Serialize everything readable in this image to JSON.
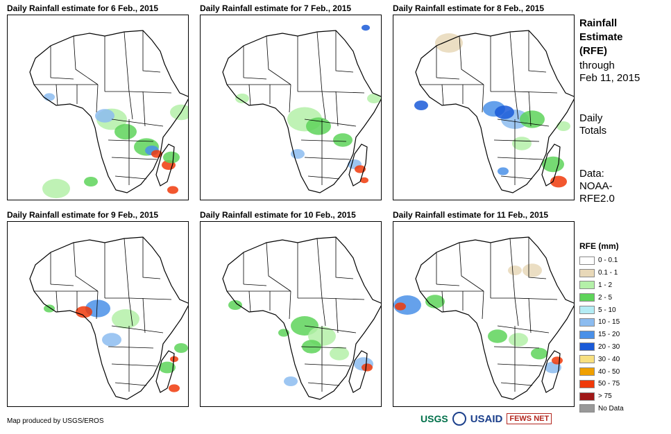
{
  "panels": [
    {
      "title": "Daily Rainfall estimate for 6 Feb., 2015"
    },
    {
      "title": "Daily Rainfall estimate for 7 Feb., 2015"
    },
    {
      "title": "Daily Rainfall estimate for 8 Feb., 2015"
    },
    {
      "title": "Daily Rainfall estimate for 9 Feb., 2015"
    },
    {
      "title": "Daily Rainfall estimate for 10 Feb., 2015"
    },
    {
      "title": "Daily Rainfall estimate for 11 Feb., 2015"
    }
  ],
  "sidebar": {
    "title_lines": [
      "Rainfall",
      "Estimate",
      "(RFE)"
    ],
    "through_lines": [
      "through",
      "Feb 11, 2015"
    ],
    "totals_lines": [
      "Daily",
      "Totals"
    ],
    "data_lines": [
      "Data:",
      "NOAA-",
      "RFE2.0"
    ]
  },
  "legend": {
    "title": "RFE (mm)",
    "items": [
      {
        "label": "0 - 0.1",
        "color": "#ffffff"
      },
      {
        "label": "0.1 - 1",
        "color": "#e8d8b8"
      },
      {
        "label": "1 - 2",
        "color": "#b4f0a8"
      },
      {
        "label": "2 - 5",
        "color": "#5ed45a"
      },
      {
        "label": "5 - 10",
        "color": "#b4ecf4"
      },
      {
        "label": "10 - 15",
        "color": "#8cbcf0"
      },
      {
        "label": "15 - 20",
        "color": "#4a90e8"
      },
      {
        "label": "20 - 30",
        "color": "#1a5ad8"
      },
      {
        "label": "30 - 40",
        "color": "#f8e080"
      },
      {
        "label": "40 - 50",
        "color": "#f0a000"
      },
      {
        "label": "50 - 75",
        "color": "#f03a0a"
      },
      {
        "label": "> 75",
        "color": "#a01818"
      },
      {
        "label": "No Data",
        "color": "#999999"
      }
    ]
  },
  "footer": {
    "credit": "Map produced by USGS/EROS",
    "logos": [
      "USGS",
      "USAID",
      "FEWS NET"
    ]
  }
}
